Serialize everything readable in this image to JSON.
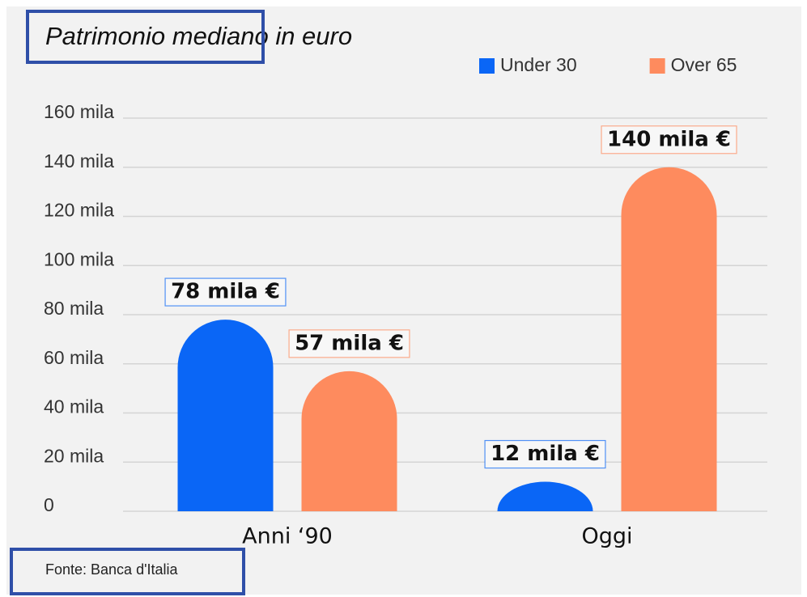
{
  "chart_data": {
    "type": "bar",
    "title": "Patrimonio mediano in euro",
    "categories": [
      "Anni ‘90",
      "Oggi"
    ],
    "series": [
      {
        "name": "Under 30",
        "color": "#0a66f6",
        "values": [
          78,
          12
        ],
        "value_labels": [
          "78 mila €",
          "12 mila €"
        ]
      },
      {
        "name": "Over 65",
        "color": "#fe8b5e",
        "values": [
          57,
          140
        ],
        "value_labels": [
          "57 mila €",
          "140 mila €"
        ]
      }
    ],
    "ylim": [
      0,
      160
    ],
    "yticks": [
      0,
      {
        "value": 20,
        "label": "20 mila"
      },
      {
        "value": 40,
        "label": "40 mila"
      },
      {
        "value": 60,
        "label": "60 mila"
      },
      {
        "value": 80,
        "label": "80 mila"
      },
      {
        "value": 100,
        "label": "100 mila"
      },
      {
        "value": 120,
        "label": "120 mila"
      },
      {
        "value": 140,
        "label": "140 mila"
      },
      {
        "value": 160,
        "label": "160 mila"
      }
    ],
    "grid": true,
    "legend": "top-right",
    "source": "Fonte: Banca d'Italia"
  }
}
